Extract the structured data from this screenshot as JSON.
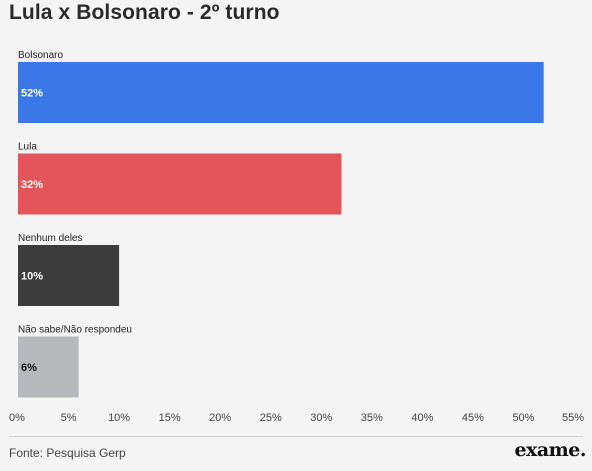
{
  "chart_data": {
    "type": "bar",
    "orientation": "horizontal",
    "title": "Lula x Bolsonaro - 2º turno",
    "categories": [
      "Bolsonaro",
      "Lula",
      "Nenhum deles",
      "Não sabe/Não respondeu"
    ],
    "values": [
      52,
      32,
      10,
      6
    ],
    "value_labels": [
      "52%",
      "32%",
      "10%",
      "6%"
    ],
    "colors": [
      "#3b78e7",
      "#e4545a",
      "#3c3c3c",
      "#b6b8bb"
    ],
    "value_label_colors": [
      "#ffffff",
      "#ffffff",
      "#ffffff",
      "#111111"
    ],
    "xlim": [
      0,
      55
    ],
    "xticks": [
      0,
      5,
      10,
      15,
      20,
      25,
      30,
      35,
      40,
      45,
      50,
      55
    ],
    "xtick_labels": [
      "0%",
      "5%",
      "10%",
      "15%",
      "20%",
      "25%",
      "30%",
      "35%",
      "40%",
      "45%",
      "50%",
      "55%"
    ],
    "grid": false,
    "legend": "none"
  },
  "footer": {
    "source": "Fonte: Pesquisa Gerp",
    "logo_text": "exame."
  }
}
